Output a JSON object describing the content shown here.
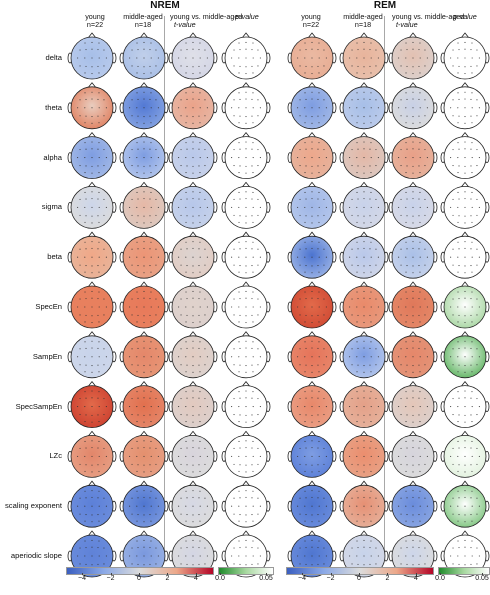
{
  "sections": [
    {
      "title": "NREM",
      "columns": [
        {
          "line1": "young",
          "line2": "n=22"
        },
        {
          "line1": "middle-aged",
          "line2": "n=18"
        },
        {
          "line1": "young vs. middle-aged",
          "line2": "t-value"
        },
        {
          "line1": "",
          "line2": "p-value"
        }
      ]
    },
    {
      "title": "REM",
      "columns": [
        {
          "line1": "young",
          "line2": "n=22"
        },
        {
          "line1": "middle-aged",
          "line2": "n=18"
        },
        {
          "line1": "young vs. middle-aged",
          "line2": "t-value"
        },
        {
          "line1": "",
          "line2": "p-value"
        }
      ]
    }
  ],
  "rows": [
    "delta",
    "theta",
    "alpha",
    "sigma",
    "beta",
    "SpecEn",
    "SampEn",
    "SpecSampEn",
    "LZc",
    "scaling exponent",
    "aperiodic slope"
  ],
  "colorbars": {
    "diverging_ticks": [
      "−4",
      "−2",
      "0",
      "2",
      "4"
    ],
    "pvalue_ticks": [
      "0.0",
      "0.05"
    ],
    "diverging_colors": {
      "neg": "#3b5fc0",
      "mid": "#dcdcdc",
      "pos": "#b40426"
    },
    "pvalue_colors": {
      "low": "#1e8a2a",
      "high": "#ffffff"
    }
  },
  "maps": {
    "NREM": {
      "young": [
        {
          "c": "#a7bfe8",
          "b": "#b8caec"
        },
        {
          "c": "#e9cdbf",
          "b": "#e08060"
        },
        {
          "c": "#7e9de2",
          "b": "#a3b9e6"
        },
        {
          "c": "#cdd6ea",
          "b": "#dcdcdc"
        },
        {
          "c": "#f0a888",
          "b": "#e8b49a"
        },
        {
          "c": "#e8805e",
          "b": "#e8805e"
        },
        {
          "c": "#c8d4ea",
          "b": "#cdd6ea"
        },
        {
          "c": "#e26a4a",
          "b": "#cc4030"
        },
        {
          "c": "#e2866a",
          "b": "#e79f84"
        },
        {
          "c": "#5c80d8",
          "b": "#6c8ddc"
        },
        {
          "c": "#5f82d8",
          "b": "#6a8cdc"
        }
      ],
      "middle": [
        {
          "c": "#c0cfea",
          "b": "#a9bfe6"
        },
        {
          "c": "#5379d4",
          "b": "#86a4e2"
        },
        {
          "c": "#7e9de2",
          "b": "#b5c7ec"
        },
        {
          "c": "#e6b8a6",
          "b": "#dcc9c0"
        },
        {
          "c": "#ec9576",
          "b": "#e8a286"
        },
        {
          "c": "#e8795a",
          "b": "#e8805e"
        },
        {
          "c": "#e5876a",
          "b": "#e69676"
        },
        {
          "c": "#e2704e",
          "b": "#e5876a"
        },
        {
          "c": "#e4906e",
          "b": "#e79f84"
        },
        {
          "c": "#4f76d0",
          "b": "#7a98de"
        },
        {
          "c": "#7a98de",
          "b": "#9ab2e4"
        }
      ],
      "tval": [
        {
          "c": "#dfe0e8",
          "b": "#d4d6e6"
        },
        {
          "c": "#eba38a",
          "b": "#e6b6a4"
        },
        {
          "c": "#b9c8ea",
          "b": "#c8d2ea"
        },
        {
          "c": "#b7c7ea",
          "b": "#c6d2ea"
        },
        {
          "c": "#dcd3d0",
          "b": "#e2cdc4"
        },
        {
          "c": "#e0d2cc",
          "b": "#dcd0cc"
        },
        {
          "c": "#e2ccc2",
          "b": "#dcd2ce"
        },
        {
          "c": "#e2c9bf",
          "b": "#dcd0cc"
        },
        {
          "c": "#d8d4dc",
          "b": "#dcdcdc"
        },
        {
          "c": "#d6d8e4",
          "b": "#dcdcdc"
        },
        {
          "c": "#d4d6e4",
          "b": "#dcdcdc"
        }
      ],
      "pval": [
        {
          "c": "#ffffff",
          "b": "#ffffff"
        },
        {
          "c": "#ffffff",
          "b": "#ffffff"
        },
        {
          "c": "#ffffff",
          "b": "#ffffff"
        },
        {
          "c": "#ffffff",
          "b": "#ffffff"
        },
        {
          "c": "#ffffff",
          "b": "#ffffff"
        },
        {
          "c": "#ffffff",
          "b": "#ffffff"
        },
        {
          "c": "#ffffff",
          "b": "#ffffff"
        },
        {
          "c": "#ffffff",
          "b": "#ffffff"
        },
        {
          "c": "#ffffff",
          "b": "#ffffff"
        },
        {
          "c": "#ffffff",
          "b": "#ffffff"
        },
        {
          "c": "#ffffff",
          "b": "#ffffff"
        }
      ]
    },
    "REM": {
      "young": [
        {
          "c": "#eab9a2",
          "b": "#e8ad94"
        },
        {
          "c": "#7e9de2",
          "b": "#a3b9e6"
        },
        {
          "c": "#eda88c",
          "b": "#e6b29c"
        },
        {
          "c": "#9fb6e6",
          "b": "#b5c7ec"
        },
        {
          "c": "#4c74d0",
          "b": "#9cb4e6"
        },
        {
          "c": "#e26a4a",
          "b": "#d04a34"
        },
        {
          "c": "#e5745a",
          "b": "#e8866a"
        },
        {
          "c": "#e8886a",
          "b": "#ea9e84"
        },
        {
          "c": "#7e9de2",
          "b": "#5c80d8"
        },
        {
          "c": "#4f76d0",
          "b": "#6a8cdc"
        },
        {
          "c": "#4f76d0",
          "b": "#6a8cdc"
        }
      ],
      "middle": [
        {
          "c": "#e8b49c",
          "b": "#e8c0ac"
        },
        {
          "c": "#a7bfe8",
          "b": "#bccbea"
        },
        {
          "c": "#e4b7a6",
          "b": "#dcc8c0"
        },
        {
          "c": "#c8d2ea",
          "b": "#d4d8e6"
        },
        {
          "c": "#b9c8ea",
          "b": "#d0d6e8"
        },
        {
          "c": "#e98a6a",
          "b": "#e89a7e"
        },
        {
          "c": "#7e9de2",
          "b": "#b5c7ec"
        },
        {
          "c": "#e4a088",
          "b": "#e6b29c"
        },
        {
          "c": "#eb8e6e",
          "b": "#e8a286"
        },
        {
          "c": "#e69074",
          "b": "#e6b09a"
        },
        {
          "c": "#c7d3ea",
          "b": "#d4d8e6"
        }
      ],
      "tval": [
        {
          "c": "#e3c1b2",
          "b": "#dcd0cc"
        },
        {
          "c": "#c8d0e6",
          "b": "#dcdcdc"
        },
        {
          "c": "#e9a088",
          "b": "#e6b29c"
        },
        {
          "c": "#c8d2ea",
          "b": "#d8dae6"
        },
        {
          "c": "#aac0e8",
          "b": "#c6d2ea"
        },
        {
          "c": "#e0785a",
          "b": "#e48868"
        },
        {
          "c": "#e5876a",
          "b": "#e49478"
        },
        {
          "c": "#e4c6b8",
          "b": "#dcd0cc"
        },
        {
          "c": "#d6d4dc",
          "b": "#dcdcdc"
        },
        {
          "c": "#6a8cdc",
          "b": "#8aa6e2"
        },
        {
          "c": "#cdd6ea",
          "b": "#dcdcdc"
        }
      ],
      "pval": [
        {
          "c": "#ffffff",
          "b": "#ffffff"
        },
        {
          "c": "#ffffff",
          "b": "#ffffff"
        },
        {
          "c": "#ffffff",
          "b": "#ffffff"
        },
        {
          "c": "#ffffff",
          "b": "#ffffff"
        },
        {
          "c": "#ffffff",
          "b": "#ffffff"
        },
        {
          "c": "#ffffff",
          "b": "#a6d5a0"
        },
        {
          "c": "#ffffff",
          "b": "#5cb25e"
        },
        {
          "c": "#ffffff",
          "b": "#ffffff"
        },
        {
          "c": "#ffffff",
          "b": "#e2f2de"
        },
        {
          "c": "#ffffff",
          "b": "#7ec47e"
        },
        {
          "c": "#ffffff",
          "b": "#ffffff"
        }
      ]
    }
  }
}
